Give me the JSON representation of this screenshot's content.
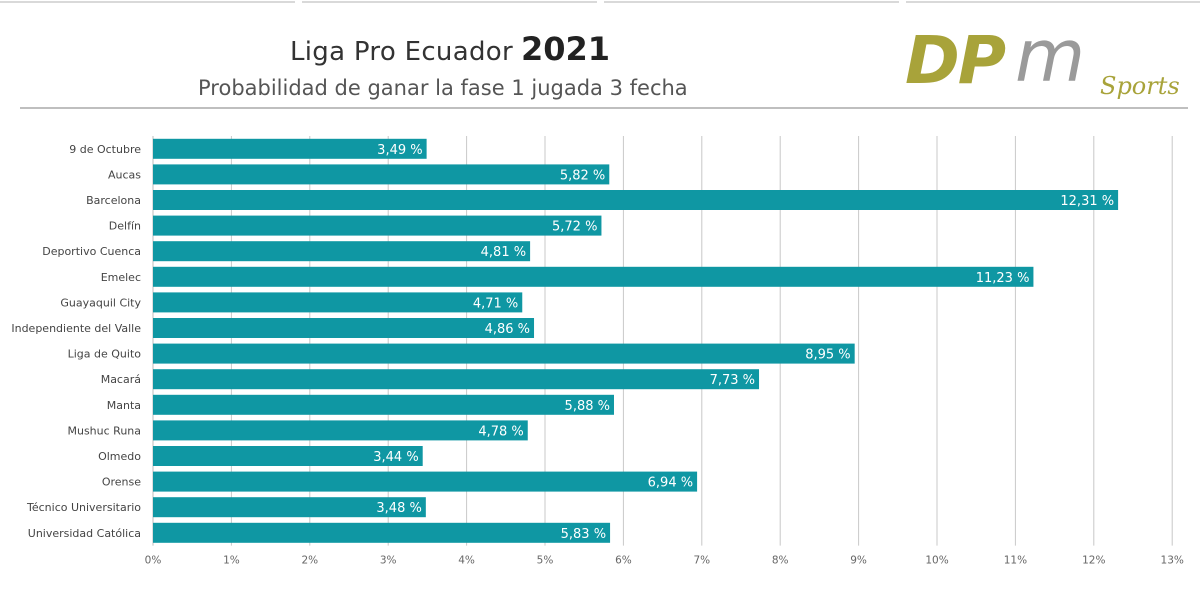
{
  "header": {
    "title": "Liga Pro Ecuador",
    "title_year": "2021",
    "subtitle": "Probabilidad de ganar la fase 1 jugada 3 fecha"
  },
  "logo": {
    "letters_dp": "DP",
    "letter_m": "m",
    "word": "Sports"
  },
  "colors": {
    "bar": "#0f97a3",
    "grid": "#c8c8c8",
    "logo_olive": "#a8a33a",
    "logo_grey": "#9a9a9a"
  },
  "chart_data": {
    "type": "bar",
    "orientation": "horizontal",
    "title": "",
    "xlabel": "",
    "ylabel": "",
    "xlim": [
      0,
      13
    ],
    "x_ticks": [
      "0%",
      "1%",
      "2%",
      "3%",
      "4%",
      "5%",
      "6%",
      "7%",
      "8%",
      "9%",
      "10%",
      "11%",
      "12%",
      "13%"
    ],
    "grid": true,
    "categories": [
      "9 de Octubre",
      "Aucas",
      "Barcelona",
      "Delfín",
      "Deportivo Cuenca",
      "Emelec",
      "Guayaquil City",
      "Independiente del Valle",
      "Liga de Quito",
      "Macará",
      "Manta",
      "Mushuc Runa",
      "Olmedo",
      "Orense",
      "Técnico Universitario",
      "Universidad Católica"
    ],
    "values": [
      3.49,
      5.82,
      12.31,
      5.72,
      4.81,
      11.23,
      4.71,
      4.86,
      8.95,
      7.73,
      5.88,
      4.78,
      3.44,
      6.94,
      3.48,
      5.83
    ],
    "data_labels": [
      "3,49 %",
      "5,82 %",
      "12,31 %",
      "5,72 %",
      "4,81 %",
      "11,23 %",
      "4,71 %",
      "4,86 %",
      "8,95 %",
      "7,73 %",
      "5,88 %",
      "4,78 %",
      "3,44 %",
      "6,94 %",
      "3,48 %",
      "5,83 %"
    ]
  }
}
